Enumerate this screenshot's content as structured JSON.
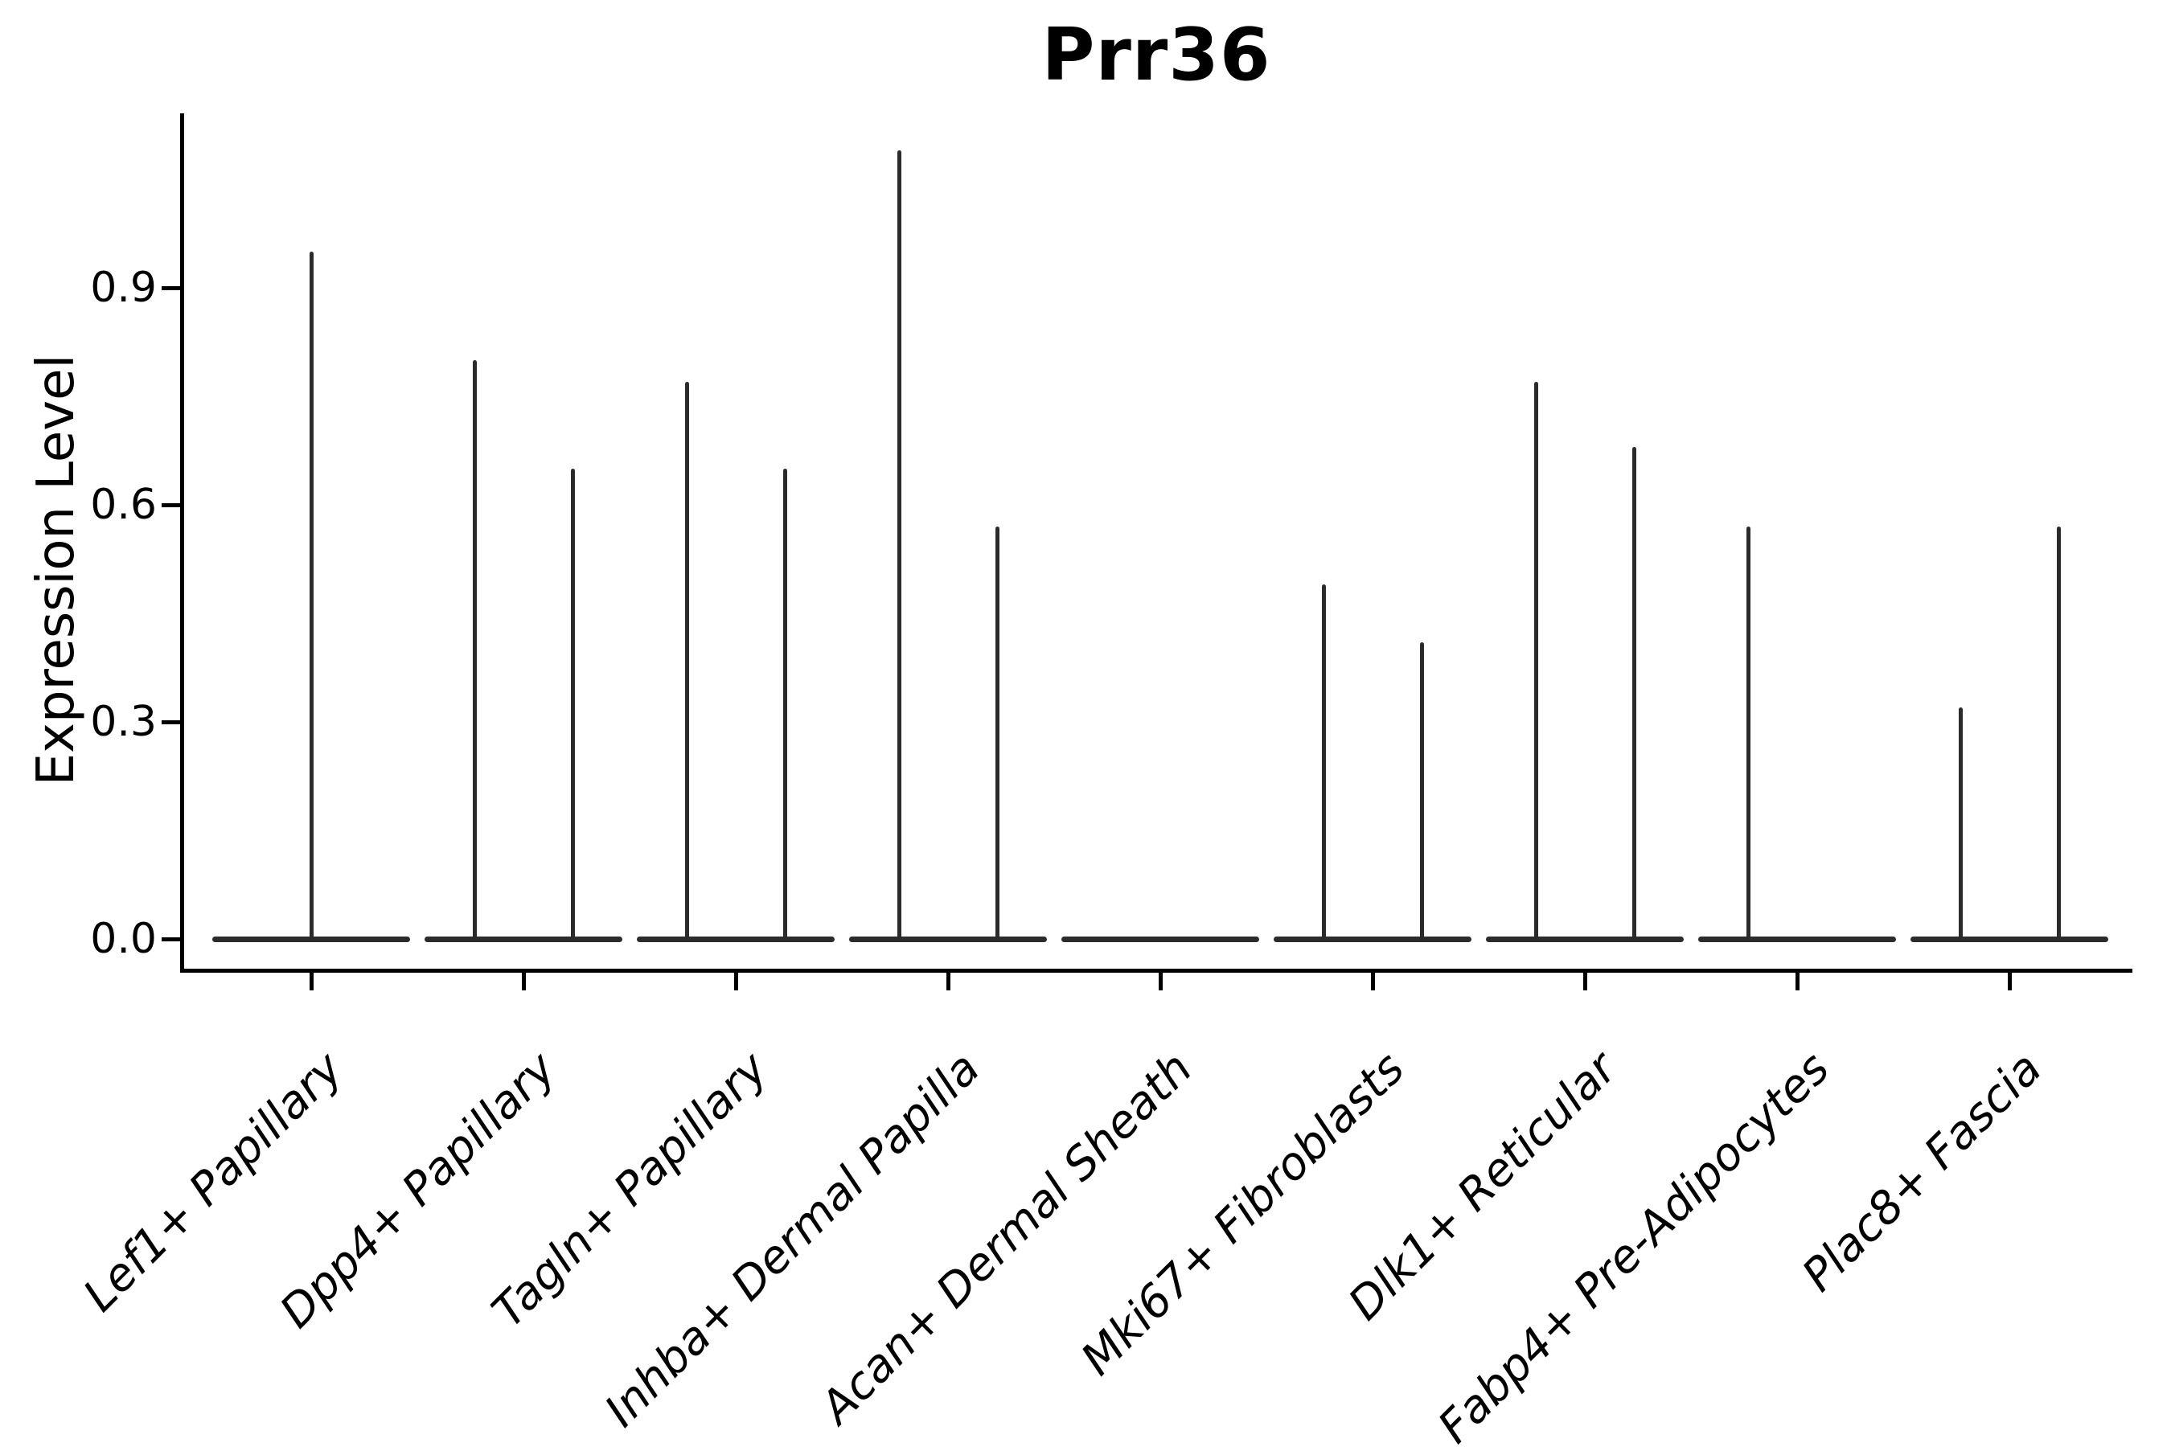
{
  "figure": {
    "title": "Prr36",
    "y_axis_label": "Expression Level"
  },
  "chart_data": {
    "type": "violin",
    "title": "Prr36",
    "xlabel": "",
    "ylabel": "Expression Level",
    "ylim": [
      0,
      1.14
    ],
    "yticks": [
      0.0,
      0.3,
      0.6,
      0.9
    ],
    "ytick_labels": [
      "0.0",
      "0.3",
      "0.6",
      "0.9"
    ],
    "grid": false,
    "legend": "none",
    "background": "#ffffff",
    "categories": [
      "Lef1+ Papillary",
      "Dpp4+ Papillary",
      "Tagln+ Papillary",
      "Inhba+ Dermal Papilla",
      "Acan+ Dermal Sheath",
      "Mki67+ Fibroblasts",
      "Dlk1+ Reticular",
      "Fabp4+ Pre-Adipocytes",
      "Plac8+ Fascia"
    ],
    "baseline_value": 0.0,
    "description": "Thin needle-like violins: wide flat base at expression 0 with narrow spikes up to the max expression value; one or two violins per category",
    "violins": [
      [
        {
          "position": "center",
          "peak": 0.95
        }
      ],
      [
        {
          "position": "left",
          "peak": 0.8
        },
        {
          "position": "right",
          "peak": 0.65
        }
      ],
      [
        {
          "position": "left",
          "peak": 0.77
        },
        {
          "position": "right",
          "peak": 0.65
        }
      ],
      [
        {
          "position": "left",
          "peak": 1.09
        },
        {
          "position": "right",
          "peak": 0.57
        }
      ],
      [],
      [
        {
          "position": "left",
          "peak": 0.49
        },
        {
          "position": "right",
          "peak": 0.41
        }
      ],
      [
        {
          "position": "left",
          "peak": 0.77
        },
        {
          "position": "right",
          "peak": 0.68
        }
      ],
      [
        {
          "position": "left",
          "peak": 0.57
        }
      ],
      [
        {
          "position": "left",
          "peak": 0.32
        },
        {
          "position": "right",
          "peak": 0.57
        }
      ]
    ],
    "colors": {
      "violin": "#2b2b2b",
      "axis": "#000000",
      "text": "#000000"
    }
  }
}
